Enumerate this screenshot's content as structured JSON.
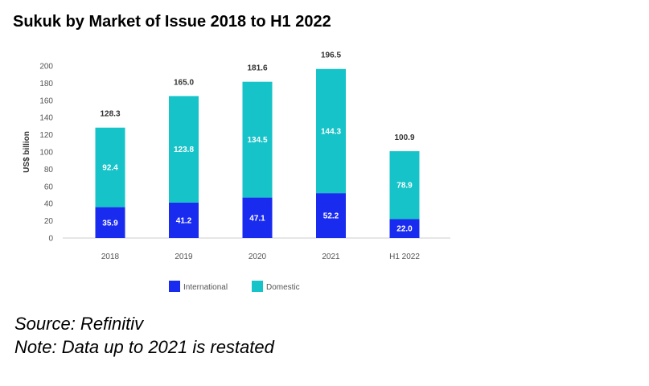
{
  "title": "Sukuk by Market of Issue 2018 to H1 2022",
  "source": "Source: Refinitiv",
  "note": "Note: Data up to 2021 is restated",
  "colors": {
    "international": "#1a2bf0",
    "domestic": "#16c3c8",
    "axis": "#cccccc"
  },
  "chart_data": {
    "type": "bar",
    "stacked": true,
    "categories": [
      "2018",
      "2019",
      "2020",
      "2021",
      "H1 2022"
    ],
    "series": [
      {
        "name": "International",
        "values": [
          35.9,
          41.2,
          47.1,
          52.2,
          22.0
        ],
        "labels": [
          "35.9",
          "41.2",
          "47.1",
          "52.2",
          "22.0"
        ]
      },
      {
        "name": "Domestic",
        "values": [
          92.4,
          123.8,
          134.5,
          144.3,
          78.9
        ],
        "labels": [
          "92.4",
          "123.8",
          "134.5",
          "144.3",
          "78.9"
        ]
      }
    ],
    "totals": [
      "128.3",
      "165.0",
      "181.6",
      "196.5",
      "100.9"
    ],
    "ylabel": "US$ billion",
    "ylim": [
      0,
      200
    ],
    "yticks": [
      0,
      20,
      40,
      60,
      80,
      100,
      120,
      140,
      160,
      180,
      200
    ],
    "legend": "bottom-center",
    "grid": false
  }
}
